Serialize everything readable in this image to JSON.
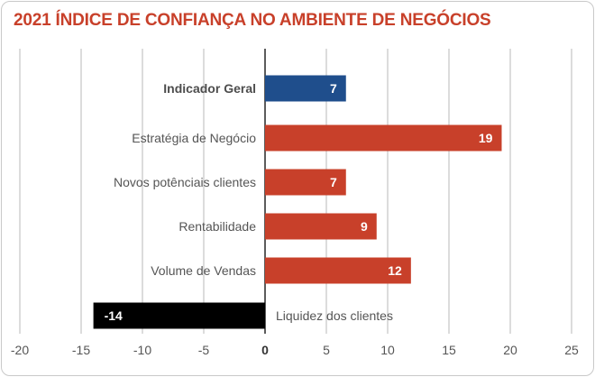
{
  "chart_data": {
    "type": "bar",
    "orientation": "horizontal",
    "title": "2021 ÍNDICE DE CONFIANÇA NO AMBIENTE DE NEGÓCIOS",
    "categories": [
      "Indicador Geral",
      "Estratégia de Negócio",
      "Novos potênciais clientes",
      "Rentabilidade",
      "Volume de Vendas",
      "Liquidez dos clientes"
    ],
    "values": [
      7,
      19,
      7,
      9,
      12,
      -14
    ],
    "value_labels": [
      "7",
      "19",
      "7",
      "9",
      "12",
      "-14"
    ],
    "colors": [
      "#1f4e8c",
      "#c8402a",
      "#c8402a",
      "#c8402a",
      "#c8402a",
      "#000000"
    ],
    "bar_values_plotted": [
      6.6,
      19.3,
      6.6,
      9.1,
      11.9,
      -14
    ],
    "xlim": [
      -20,
      25
    ],
    "xticks": [
      "-20",
      "-15",
      "-10",
      "-5",
      "0",
      "5",
      "10",
      "15",
      "20",
      "25"
    ],
    "tick_values": [
      -20,
      -15,
      -10,
      -5,
      0,
      5,
      10,
      15,
      20,
      25
    ],
    "grid": true,
    "xlabel": "",
    "ylabel": ""
  }
}
